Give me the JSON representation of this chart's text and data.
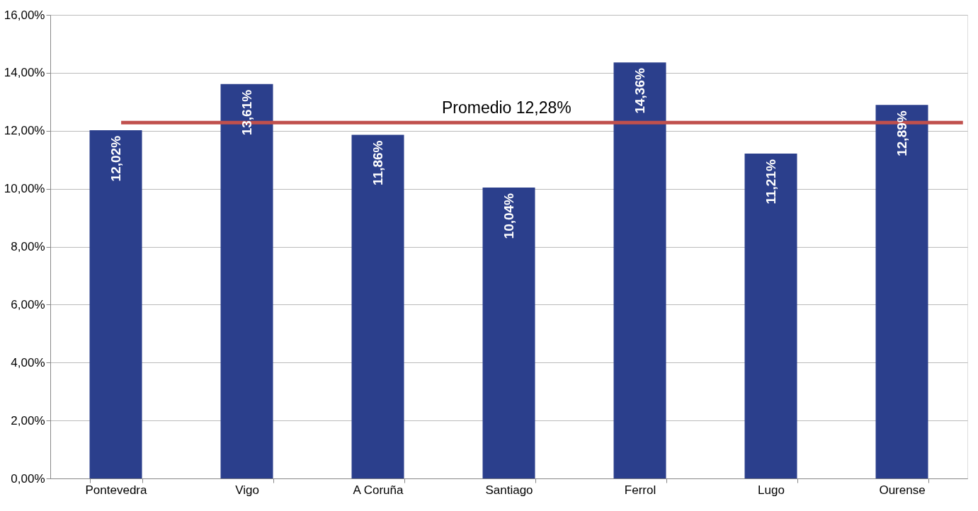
{
  "chart_data": {
    "type": "bar",
    "categories": [
      "Pontevedra",
      "Vigo",
      "A Coruña",
      "Santiago",
      "Ferrol",
      "Lugo",
      "Ourense"
    ],
    "values": [
      12.02,
      13.61,
      11.86,
      10.04,
      14.36,
      11.21,
      12.89
    ],
    "value_labels": [
      "12,02%",
      "13,61%",
      "11,86%",
      "10,04%",
      "14,36%",
      "11,21%",
      "12,89%"
    ],
    "color": "#2b3f8c",
    "ylim": [
      0,
      16
    ],
    "yticks": [
      {
        "value": 0,
        "label": "0,00%"
      },
      {
        "value": 2,
        "label": "2,00%"
      },
      {
        "value": 4,
        "label": "4,00%"
      },
      {
        "value": 6,
        "label": "6,00%"
      },
      {
        "value": 8,
        "label": "8,00%"
      },
      {
        "value": 10,
        "label": "10,00%"
      },
      {
        "value": 12,
        "label": "12,00%"
      },
      {
        "value": 14,
        "label": "14,00%"
      },
      {
        "value": 16,
        "label": "16,00%"
      }
    ],
    "ref_lines": [
      {
        "axis": "y",
        "value": 12.28,
        "label": "Promedio 12,28%",
        "color": "#c0504d"
      }
    ],
    "grid": "y"
  }
}
